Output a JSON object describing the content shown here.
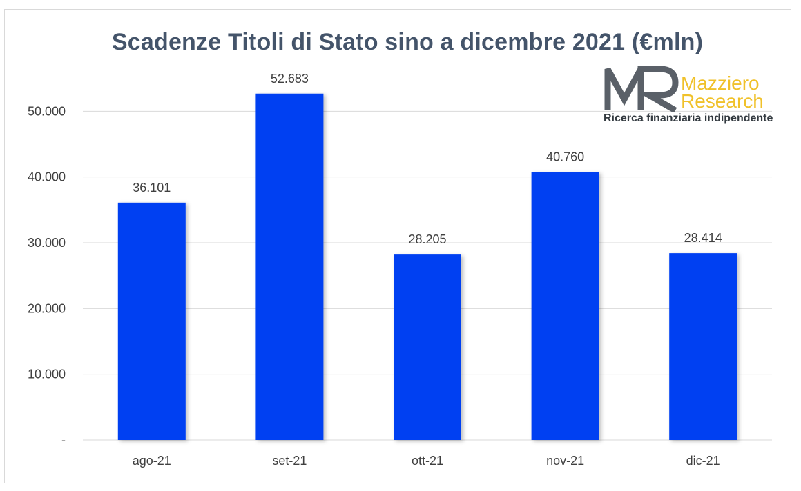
{
  "chart_data": {
    "type": "bar",
    "title": "Scadenze Titoli di Stato sino a dicembre 2021 (€mln)",
    "categories": [
      "ago-21",
      "set-21",
      "ott-21",
      "nov-21",
      "dic-21"
    ],
    "values": [
      36101,
      52683,
      28205,
      40760,
      28414
    ],
    "value_labels": [
      "36.101",
      "52.683",
      "28.205",
      "40.760",
      "28.414"
    ],
    "yticks": [
      0,
      10000,
      20000,
      30000,
      40000,
      50000
    ],
    "ytick_labels": [
      "-",
      "10.000",
      "20.000",
      "30.000",
      "40.000",
      "50.000"
    ],
    "ylim": [
      0,
      60000
    ],
    "grid": true,
    "legend": "none",
    "xlabel": "",
    "ylabel": "",
    "bar_color": "#0540f2",
    "gridline_color": "#d9d9d9",
    "text_color": "#404040",
    "title_color": "#44546a"
  },
  "logo": {
    "mark": "MR",
    "name_line1": "Mazziero",
    "name_line2": "Research",
    "tagline": "Ricerca finanziaria indipendente",
    "mark_color": "#5a6068",
    "name_color": "#f0c12a"
  }
}
